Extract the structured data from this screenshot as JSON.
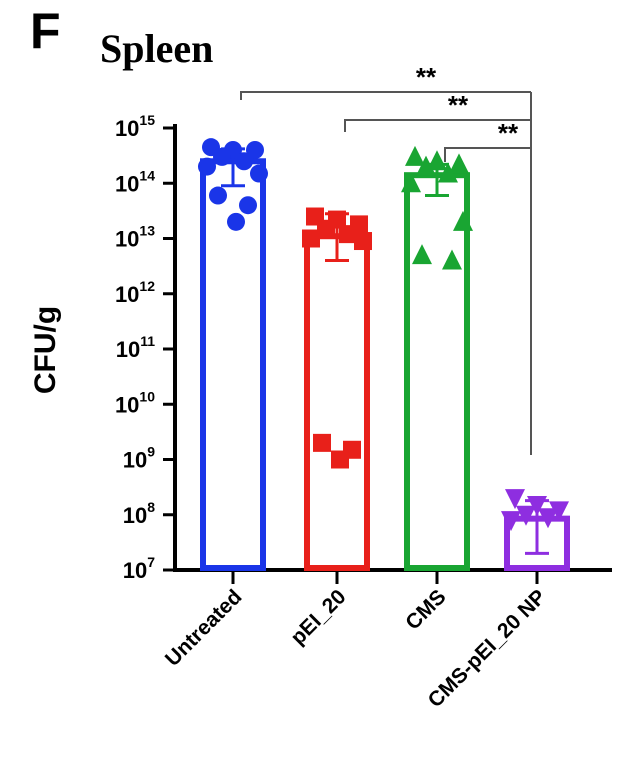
{
  "panel_letter": "F",
  "chart_data": {
    "type": "bar",
    "title": "Spleen",
    "ylabel": "CFU/g",
    "xlabel": "",
    "y_scale": "log",
    "ylim": [
      10000000,
      1000000000000000
    ],
    "y_ticks": [
      {
        "value": 10000000,
        "base": "10",
        "exp": "7"
      },
      {
        "value": 100000000,
        "base": "10",
        "exp": "8"
      },
      {
        "value": 1000000000,
        "base": "10",
        "exp": "9"
      },
      {
        "value": 10000000000,
        "base": "10",
        "exp": "10"
      },
      {
        "value": 100000000000,
        "base": "10",
        "exp": "11"
      },
      {
        "value": 1000000000000,
        "base": "10",
        "exp": "12"
      },
      {
        "value": 10000000000000,
        "base": "10",
        "exp": "13"
      },
      {
        "value": 100000000000000,
        "base": "10",
        "exp": "14"
      },
      {
        "value": 1000000000000000,
        "base": "10",
        "exp": "15"
      }
    ],
    "grid": false,
    "categories": [
      "Untreated",
      "pEI_20",
      "CMS",
      "CMS-pEI_20 NP"
    ],
    "values": [
      250000000000000,
      11000000000000,
      140000000000000,
      85000000
    ],
    "error_low": [
      90000000000000,
      4000000000000,
      60000000000000,
      20000000
    ],
    "error_high": [
      420000000000000,
      28000000000000,
      220000000000000,
      180000000
    ],
    "colors": [
      "#1a35e8",
      "#e8201a",
      "#19a532",
      "#8e2ee0"
    ],
    "markers": [
      "circle",
      "square",
      "triangle-up",
      "triangle-down"
    ],
    "points": [
      [
        450000000000000,
        400000000000000,
        400000000000000,
        300000000000000,
        250000000000000,
        200000000000000,
        150000000000000,
        60000000000000,
        40000000000000,
        20000000000000
      ],
      [
        25000000000000,
        22000000000000,
        18000000000000,
        15000000000000,
        12000000000000,
        10000000000000,
        9000000000000,
        2000000000,
        1500000000,
        1000000000
      ],
      [
        300000000000000,
        250000000000000,
        220000000000000,
        200000000000000,
        150000000000000,
        100000000000000,
        20000000000000,
        5000000000000,
        4000000000000
      ],
      [
        200000000,
        150000000,
        120000000,
        100000000,
        90000000,
        80000000
      ]
    ],
    "significance": [
      {
        "from": 0,
        "to": 3,
        "label": "**"
      },
      {
        "from": 1,
        "to": 3,
        "label": "**"
      },
      {
        "from": 2,
        "to": 3,
        "label": "**"
      }
    ]
  }
}
